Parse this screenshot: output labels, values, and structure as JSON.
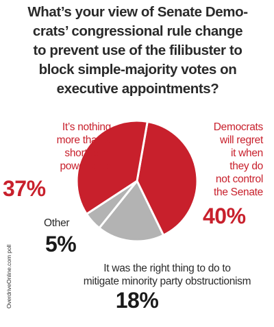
{
  "title": "What’s your view of Senate Demo-\ncrats’ congressional rule change\nto prevent use of the filibuster to\nblock simple-majority votes on\nexecutive appointments?",
  "source_note": "OverdriveOnline.com poll",
  "colors": {
    "red": "#c8202c",
    "gray": "#b3b3b3",
    "dark_text": "#2a2a2a"
  },
  "chart_data": {
    "type": "pie",
    "title": "What’s your view of Senate Democrats’ congressional rule change to prevent use of the filibuster to block simple-majority votes on executive appointments?",
    "slices": [
      {
        "label": "Democrats will regret it when they do not control the Senate",
        "value": 40,
        "display": "40%",
        "color": "#c8202c"
      },
      {
        "label": "It was the right thing to do to mitigate minority party obstructionism",
        "value": 18,
        "display": "18%",
        "color": "#b3b3b3"
      },
      {
        "label": "Other",
        "value": 5,
        "display": "5%",
        "color": "#b3b3b3"
      },
      {
        "label": "It’s nothing more than a short-term power grab",
        "value": 37,
        "display": "37%",
        "color": "#c8202c"
      }
    ],
    "labels": {
      "power_grab": "It’s nothing\nmore than a\nshort-term\npower grab",
      "regret": "Democrats\nwill regret\nit when\nthey do\nnot control\nthe Senate",
      "other": "Other",
      "right_thing": "It was the right thing to do to\nmitigate minority party obstructionism"
    }
  }
}
